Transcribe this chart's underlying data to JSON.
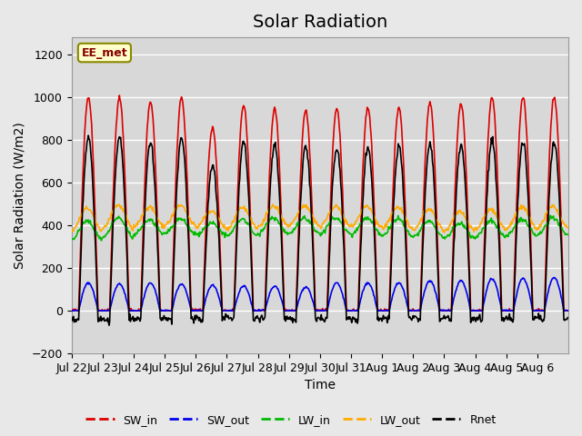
{
  "title": "Solar Radiation",
  "ylabel": "Solar Radiation (W/m2)",
  "xlabel": "Time",
  "ylim": [
    -200,
    1280
  ],
  "yticks": [
    -200,
    0,
    200,
    400,
    600,
    800,
    1000,
    1200
  ],
  "xtick_labels": [
    "Jul 22",
    "Jul 23",
    "Jul 24",
    "Jul 25",
    "Jul 26",
    "Jul 27",
    "Jul 28",
    "Jul 29",
    "Jul 30",
    "Jul 31",
    "Aug 1",
    "Aug 2",
    "Aug 3",
    "Aug 4",
    "Aug 5",
    "Aug 6"
  ],
  "n_days": 16,
  "hours_per_day": 24,
  "dt_hours": 0.5,
  "SW_in_peaks": [
    1000,
    1000,
    980,
    1000,
    855,
    960,
    945,
    935,
    945,
    950,
    950,
    975,
    970,
    1000,
    1000,
    1000
  ],
  "SW_out_peaks": [
    130,
    125,
    130,
    125,
    120,
    115,
    115,
    110,
    130,
    130,
    130,
    140,
    140,
    150,
    150,
    155
  ],
  "LW_in_base": [
    335,
    345,
    355,
    360,
    355,
    350,
    360,
    365,
    360,
    355,
    350,
    345,
    340,
    345,
    350,
    355
  ],
  "LW_in_day_amp": [
    85,
    90,
    70,
    70,
    55,
    80,
    75,
    70,
    75,
    80,
    80,
    75,
    70,
    75,
    80,
    80
  ],
  "LW_out_base": [
    375,
    385,
    395,
    400,
    390,
    385,
    395,
    400,
    395,
    390,
    385,
    380,
    375,
    380,
    385,
    390
  ],
  "LW_out_day_amp": [
    105,
    110,
    90,
    90,
    75,
    100,
    95,
    90,
    95,
    100,
    100,
    95,
    90,
    95,
    100,
    100
  ],
  "colors": {
    "SW_in": "#dd0000",
    "SW_out": "#0000ee",
    "LW_in": "#00bb00",
    "LW_out": "#ffaa00",
    "Rnet": "#000000"
  },
  "legend_label": "EE_met",
  "bg_color": "#e8e8e8",
  "plot_bg_color": "#d8d8d8",
  "grid_color": "#ffffff",
  "title_fontsize": 14,
  "axis_fontsize": 10,
  "tick_fontsize": 9
}
